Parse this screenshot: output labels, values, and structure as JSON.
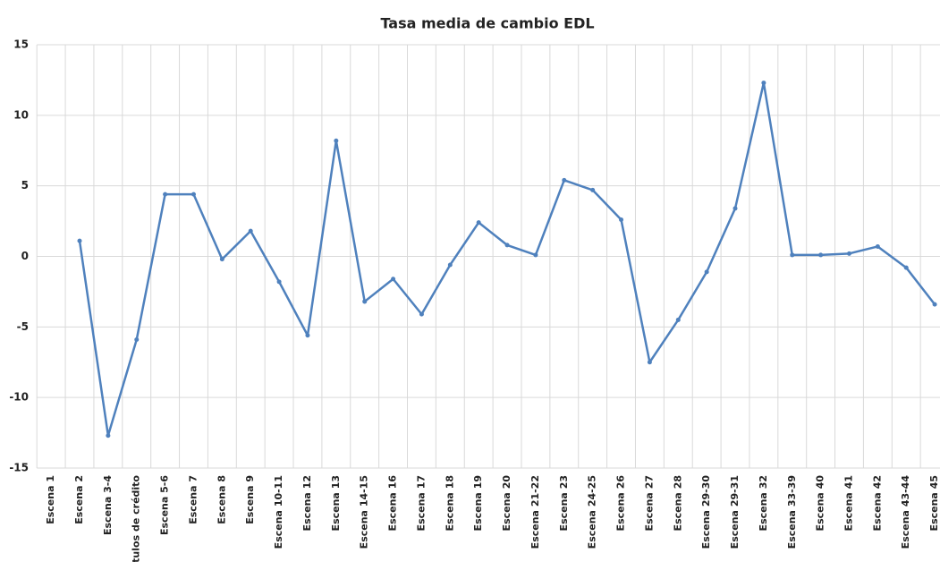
{
  "chart_data": {
    "type": "line",
    "title": "Tasa media de cambio EDL",
    "categories": [
      "Escena  1",
      "Escena  2",
      "Escena  3-4",
      "Títulos de crédito",
      "Escena  5-6",
      "Escena  7",
      "Escena  8",
      "Escena  9",
      "Escena 10-11",
      "Escena 12",
      "Escena 13",
      "Escena 14-15",
      "Escena 16",
      "Escena 17",
      "Escena 18",
      "Escena 19",
      "Escena 20",
      "Escena 21-22",
      "Escena 23",
      "Escena 24-25",
      "Escena 26",
      "Escena 27",
      "Escena 28",
      "Escena 29-30",
      "Escena 29-31",
      "Escena 32",
      "Escena 33-39",
      "Escena 40",
      "Escena 41",
      "Escena 42",
      "Escena 43-44",
      "Escena 45"
    ],
    "series": [
      {
        "name": "Tasa media de cambio EDL",
        "color": "#4f81bd",
        "values": [
          null,
          1.1,
          -12.7,
          -5.9,
          4.4,
          4.4,
          -0.2,
          1.8,
          -1.8,
          -5.6,
          8.2,
          -3.2,
          -1.6,
          -4.1,
          -0.6,
          2.4,
          0.8,
          0.1,
          5.4,
          4.7,
          2.6,
          -7.5,
          -4.5,
          -1.1,
          3.4,
          12.3,
          0.1,
          0.1,
          0.2,
          0.7,
          -0.8,
          -3.4
        ]
      }
    ],
    "ylim": [
      -15,
      15
    ],
    "yticks": [
      -15,
      -10,
      -5,
      0,
      5,
      10,
      15
    ],
    "grid": true
  }
}
